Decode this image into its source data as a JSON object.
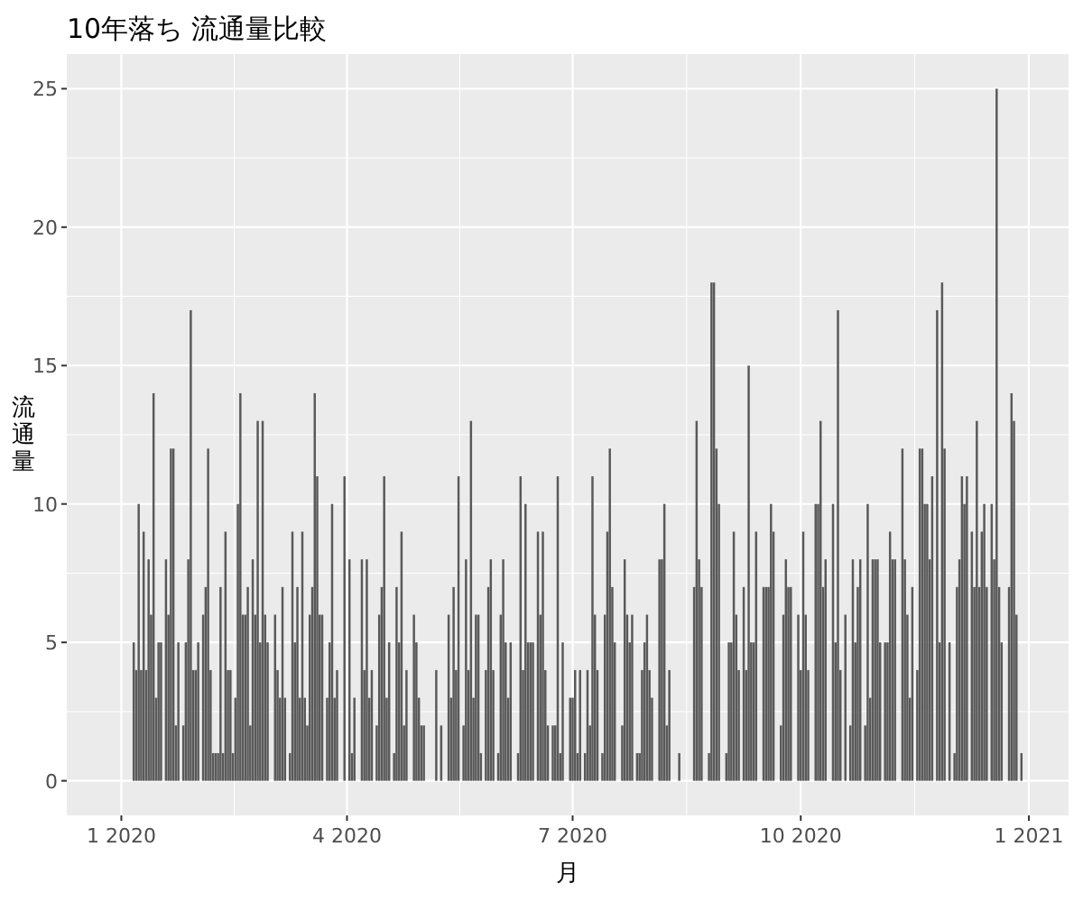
{
  "chart_data": {
    "type": "bar",
    "title": "10年落ち 流通量比較",
    "xlabel": "月",
    "ylabel": "流通量",
    "x": [
      "2020-01-06",
      "2020-01-07",
      "2020-01-08",
      "2020-01-09",
      "2020-01-10",
      "2020-01-11",
      "2020-01-12",
      "2020-01-13",
      "2020-01-14",
      "2020-01-15",
      "2020-01-16",
      "2020-01-17",
      "2020-01-19",
      "2020-01-20",
      "2020-01-21",
      "2020-01-22",
      "2020-01-23",
      "2020-01-24",
      "2020-01-26",
      "2020-01-27",
      "2020-01-28",
      "2020-01-29",
      "2020-01-30",
      "2020-01-31",
      "2020-02-01",
      "2020-02-03",
      "2020-02-04",
      "2020-02-05",
      "2020-02-06",
      "2020-02-07",
      "2020-02-08",
      "2020-02-09",
      "2020-02-10",
      "2020-02-11",
      "2020-02-12",
      "2020-02-13",
      "2020-02-14",
      "2020-02-15",
      "2020-02-16",
      "2020-02-17",
      "2020-02-18",
      "2020-02-19",
      "2020-02-20",
      "2020-02-21",
      "2020-02-22",
      "2020-02-23",
      "2020-02-24",
      "2020-02-25",
      "2020-02-26",
      "2020-02-27",
      "2020-02-28",
      "2020-02-29",
      "2020-03-03",
      "2020-03-04",
      "2020-03-05",
      "2020-03-06",
      "2020-03-07",
      "2020-03-09",
      "2020-03-10",
      "2020-03-11",
      "2020-03-12",
      "2020-03-13",
      "2020-03-14",
      "2020-03-15",
      "2020-03-16",
      "2020-03-17",
      "2020-03-18",
      "2020-03-19",
      "2020-03-20",
      "2020-03-21",
      "2020-03-22",
      "2020-03-24",
      "2020-03-25",
      "2020-03-26",
      "2020-03-27",
      "2020-03-28",
      "2020-03-31",
      "2020-04-02",
      "2020-04-03",
      "2020-04-04",
      "2020-04-07",
      "2020-04-08",
      "2020-04-09",
      "2020-04-10",
      "2020-04-11",
      "2020-04-13",
      "2020-04-14",
      "2020-04-15",
      "2020-04-16",
      "2020-04-17",
      "2020-04-18",
      "2020-04-20",
      "2020-04-21",
      "2020-04-22",
      "2020-04-23",
      "2020-04-24",
      "2020-04-25",
      "2020-04-28",
      "2020-04-29",
      "2020-04-30",
      "2020-05-01",
      "2020-05-02",
      "2020-05-07",
      "2020-05-09",
      "2020-05-12",
      "2020-05-13",
      "2020-05-14",
      "2020-05-15",
      "2020-05-16",
      "2020-05-18",
      "2020-05-19",
      "2020-05-20",
      "2020-05-21",
      "2020-05-22",
      "2020-05-23",
      "2020-05-24",
      "2020-05-25",
      "2020-05-27",
      "2020-05-28",
      "2020-05-29",
      "2020-05-30",
      "2020-06-01",
      "2020-06-02",
      "2020-06-03",
      "2020-06-04",
      "2020-06-05",
      "2020-06-06",
      "2020-06-09",
      "2020-06-10",
      "2020-06-11",
      "2020-06-12",
      "2020-06-13",
      "2020-06-14",
      "2020-06-15",
      "2020-06-17",
      "2020-06-18",
      "2020-06-19",
      "2020-06-20",
      "2020-06-21",
      "2020-06-23",
      "2020-06-24",
      "2020-06-25",
      "2020-06-26",
      "2020-06-27",
      "2020-06-30",
      "2020-07-01",
      "2020-07-02",
      "2020-07-03",
      "2020-07-04",
      "2020-07-06",
      "2020-07-07",
      "2020-07-08",
      "2020-07-09",
      "2020-07-10",
      "2020-07-11",
      "2020-07-13",
      "2020-07-14",
      "2020-07-15",
      "2020-07-16",
      "2020-07-17",
      "2020-07-18",
      "2020-07-21",
      "2020-07-22",
      "2020-07-23",
      "2020-07-24",
      "2020-07-25",
      "2020-07-27",
      "2020-07-28",
      "2020-07-29",
      "2020-07-30",
      "2020-07-31",
      "2020-08-01",
      "2020-08-02",
      "2020-08-05",
      "2020-08-06",
      "2020-08-07",
      "2020-08-08",
      "2020-08-09",
      "2020-08-13",
      "2020-08-19",
      "2020-08-20",
      "2020-08-21",
      "2020-08-22",
      "2020-08-25",
      "2020-08-26",
      "2020-08-27",
      "2020-08-28",
      "2020-08-29",
      "2020-09-01",
      "2020-09-02",
      "2020-09-03",
      "2020-09-04",
      "2020-09-05",
      "2020-09-06",
      "2020-09-08",
      "2020-09-09",
      "2020-09-10",
      "2020-09-11",
      "2020-09-12",
      "2020-09-13",
      "2020-09-16",
      "2020-09-17",
      "2020-09-18",
      "2020-09-19",
      "2020-09-20",
      "2020-09-23",
      "2020-09-24",
      "2020-09-25",
      "2020-09-26",
      "2020-09-27",
      "2020-09-30",
      "2020-10-01",
      "2020-10-02",
      "2020-10-03",
      "2020-10-04",
      "2020-10-07",
      "2020-10-08",
      "2020-10-09",
      "2020-10-10",
      "2020-10-11",
      "2020-10-14",
      "2020-10-15",
      "2020-10-16",
      "2020-10-17",
      "2020-10-19",
      "2020-10-21",
      "2020-10-22",
      "2020-10-23",
      "2020-10-24",
      "2020-10-25",
      "2020-10-27",
      "2020-10-28",
      "2020-10-29",
      "2020-10-30",
      "2020-10-31",
      "2020-11-01",
      "2020-11-02",
      "2020-11-04",
      "2020-11-05",
      "2020-11-06",
      "2020-11-07",
      "2020-11-08",
      "2020-11-11",
      "2020-11-12",
      "2020-11-13",
      "2020-11-14",
      "2020-11-15",
      "2020-11-17",
      "2020-11-18",
      "2020-11-19",
      "2020-11-20",
      "2020-11-21",
      "2020-11-22",
      "2020-11-23",
      "2020-11-25",
      "2020-11-26",
      "2020-11-27",
      "2020-11-28",
      "2020-11-30",
      "2020-12-02",
      "2020-12-03",
      "2020-12-04",
      "2020-12-05",
      "2020-12-06",
      "2020-12-07",
      "2020-12-09",
      "2020-12-10",
      "2020-12-11",
      "2020-12-12",
      "2020-12-13",
      "2020-12-14",
      "2020-12-15",
      "2020-12-17",
      "2020-12-18",
      "2020-12-19",
      "2020-12-20",
      "2020-12-21",
      "2020-12-24",
      "2020-12-25",
      "2020-12-26",
      "2020-12-27",
      "2020-12-29"
    ],
    "values": [
      5,
      4,
      10,
      4,
      9,
      4,
      8,
      6,
      14,
      3,
      5,
      5,
      8,
      6,
      12,
      12,
      2,
      5,
      2,
      5,
      8,
      17,
      4,
      4,
      5,
      6,
      7,
      12,
      4,
      1,
      1,
      1,
      7,
      1,
      9,
      4,
      4,
      1,
      3,
      10,
      14,
      6,
      6,
      7,
      2,
      8,
      6,
      13,
      5,
      13,
      6,
      5,
      6,
      4,
      3,
      7,
      3,
      1,
      9,
      5,
      7,
      3,
      9,
      3,
      2,
      6,
      7,
      14,
      11,
      6,
      6,
      3,
      5,
      10,
      3,
      4,
      11,
      8,
      1,
      3,
      8,
      4,
      8,
      3,
      4,
      2,
      6,
      7,
      11,
      3,
      5,
      1,
      7,
      5,
      9,
      2,
      4,
      6,
      5,
      3,
      2,
      2,
      4,
      2,
      6,
      3,
      7,
      4,
      11,
      2,
      8,
      4,
      13,
      3,
      6,
      6,
      1,
      4,
      7,
      8,
      4,
      1,
      6,
      8,
      5,
      3,
      5,
      1,
      11,
      4,
      10,
      5,
      5,
      5,
      9,
      6,
      9,
      4,
      2,
      2,
      2,
      11,
      1,
      5,
      3,
      3,
      4,
      1,
      4,
      1,
      4,
      2,
      11,
      6,
      4,
      1,
      6,
      9,
      12,
      7,
      5,
      2,
      8,
      6,
      5,
      6,
      1,
      1,
      4,
      5,
      6,
      4,
      3,
      8,
      8,
      10,
      2,
      4,
      1,
      7,
      13,
      8,
      7,
      1,
      18,
      18,
      12,
      10,
      1,
      5,
      5,
      9,
      6,
      4,
      7,
      4,
      15,
      5,
      5,
      9,
      7,
      7,
      7,
      10,
      9,
      2,
      6,
      8,
      7,
      7,
      6,
      4,
      9,
      6,
      4,
      10,
      10,
      13,
      7,
      8,
      10,
      5,
      17,
      4,
      6,
      2,
      8,
      5,
      7,
      8,
      2,
      10,
      3,
      8,
      8,
      8,
      5,
      5,
      5,
      9,
      8,
      8,
      12,
      8,
      6,
      3,
      7,
      4,
      12,
      12,
      10,
      10,
      8,
      11,
      17,
      5,
      18,
      12,
      5,
      1,
      7,
      8,
      11,
      10,
      11,
      9,
      7,
      13,
      7,
      9,
      10,
      7,
      10,
      8,
      25,
      7,
      5,
      7,
      14,
      13,
      6,
      1
    ],
    "color": "#595959",
    "xlim": [
      "2019-12-10",
      "2021-01-17"
    ],
    "xticks": [
      {
        "value": "2020-01-01",
        "label": "1 2020"
      },
      {
        "value": "2020-04-01",
        "label": "4 2020"
      },
      {
        "value": "2020-07-01",
        "label": "7 2020"
      },
      {
        "value": "2020-10-01",
        "label": "10 2020"
      },
      {
        "value": "2021-01-01",
        "label": "1 2021"
      }
    ],
    "ylim": [
      -1.25,
      26.25
    ],
    "yticks": [
      0,
      5,
      10,
      15,
      20,
      25
    ],
    "grid": true
  }
}
